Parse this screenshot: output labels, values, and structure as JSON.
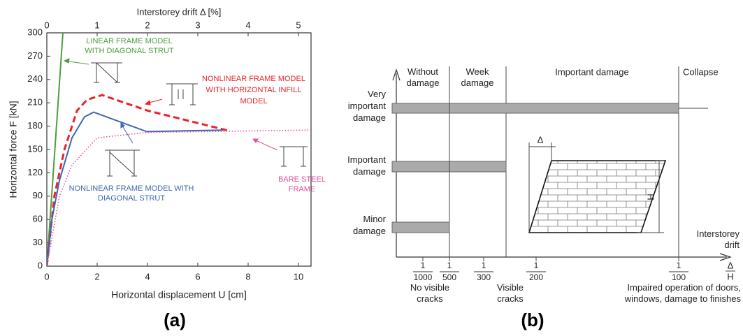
{
  "chart_data": {
    "type": "line",
    "x_label": "Horizontal displacement U [cm]",
    "y_label": "Horizontal force F [kN]",
    "x2_label": "Interstorey drift Δ [%]",
    "xlim": [
      0,
      10.5
    ],
    "xticks": [
      0,
      2,
      4,
      6,
      8,
      10
    ],
    "x2lim": [
      0,
      5.25
    ],
    "x2ticks": [
      0,
      1,
      2,
      3,
      4,
      5
    ],
    "ylim": [
      0,
      300
    ],
    "yticks": [
      0,
      30,
      60,
      90,
      120,
      150,
      180,
      210,
      240,
      270,
      300
    ],
    "grid": false,
    "series": [
      {
        "label": [
          "LINEAR FRAME MODEL",
          "WITH DIAGONAL STRUT"
        ],
        "color": "#4aa03c",
        "dash": "solid",
        "x": [
          0,
          0.64
        ],
        "values": [
          0,
          300
        ]
      },
      {
        "label": [
          "NONLINEAR FRAME MODEL",
          "WITH HORIZONTAL INFILL",
          "MODEL"
        ],
        "color": "#e8242a",
        "dash": "dashed",
        "x": [
          0,
          0.3,
          0.7,
          1.2,
          1.6,
          2.2,
          4,
          7.25
        ],
        "values": [
          0,
          90,
          150,
          200,
          214,
          220,
          200,
          174
        ]
      },
      {
        "label": [
          "NONLINEAR FRAME MODEL WITH",
          "DIAGONAL STRUT"
        ],
        "color": "#3f67b1",
        "dash": "solid",
        "x": [
          0,
          0.2,
          0.5,
          1,
          1.5,
          1.86,
          3.97,
          7
        ],
        "values": [
          0,
          60,
          110,
          165,
          192,
          198,
          173,
          175
        ]
      },
      {
        "label": [
          "BARE STEEL",
          "FRAME"
        ],
        "color": "#e0509a",
        "dash": "dotted",
        "x": [
          0,
          0.5,
          1,
          2,
          4,
          10.5
        ],
        "values": [
          0,
          90,
          130,
          165,
          172,
          175
        ]
      }
    ],
    "panel_label": "(a)"
  },
  "diagram": {
    "panel_label": "(b)",
    "columns": [
      [
        "Without",
        "damage"
      ],
      [
        "Week",
        "damage"
      ],
      [
        "Important damage"
      ],
      [
        "Collapse"
      ]
    ],
    "rows": [
      [
        "Very",
        "important",
        "damage"
      ],
      [
        "Important",
        "damage"
      ],
      [
        "Minor",
        "damage"
      ]
    ],
    "drifts": [
      {
        "numerator": "1",
        "denominator": "1000"
      },
      {
        "numerator": "1",
        "denominator": "500"
      },
      {
        "numerator": "1",
        "denominator": "300"
      },
      {
        "numerator": "1",
        "denominator": "200"
      },
      {
        "numerator": "1",
        "denominator": "100"
      }
    ],
    "notes": [
      [
        "No visible",
        "cracks"
      ],
      [
        "Visible",
        "cracks"
      ],
      [
        "Impaired operation of doors,",
        "windows, damage to finishes"
      ]
    ],
    "axis_label": [
      "Interstorey",
      "drift"
    ],
    "axis_fraction": {
      "numerator": "Δ",
      "denominator": "H"
    },
    "sketch": {
      "delta": "Δ",
      "height": "H"
    }
  }
}
